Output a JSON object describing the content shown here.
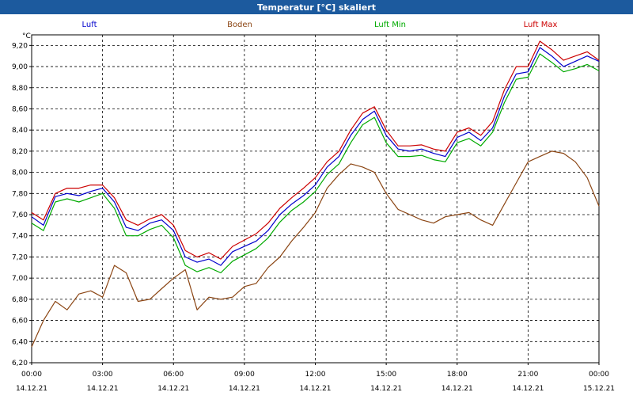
{
  "window": {
    "title": "Temperatur [°C] skaliert"
  },
  "chart_data": {
    "type": "line",
    "title": "Temperatur [°C] skaliert",
    "ylabel": "°C",
    "xlabel": "",
    "grid": true,
    "ylim": [
      6.2,
      9.3
    ],
    "y_ticks": [
      6.2,
      6.4,
      6.6,
      6.8,
      7.0,
      7.2,
      7.4,
      7.6,
      7.8,
      8.0,
      8.2,
      8.4,
      8.6,
      8.8,
      9.0,
      9.2
    ],
    "y_tick_labels": [
      "6,20",
      "6,40",
      "6,60",
      "6,80",
      "7,00",
      "7,20",
      "7,40",
      "7,60",
      "7,80",
      "8,00",
      "8,20",
      "8,40",
      "8,60",
      "8,80",
      "9,00",
      "9,20"
    ],
    "xlim": [
      0,
      24
    ],
    "x_ticks": [
      {
        "hour": 0,
        "time": "00:00",
        "date": "14.12.21"
      },
      {
        "hour": 3,
        "time": "03:00",
        "date": "14.12.21"
      },
      {
        "hour": 6,
        "time": "06:00",
        "date": "14.12.21"
      },
      {
        "hour": 9,
        "time": "09:00",
        "date": "14.12.21"
      },
      {
        "hour": 12,
        "time": "12:00",
        "date": "14.12.21"
      },
      {
        "hour": 15,
        "time": "15:00",
        "date": "14.12.21"
      },
      {
        "hour": 18,
        "time": "18:00",
        "date": "14.12.21"
      },
      {
        "hour": 21,
        "time": "21:00",
        "date": "14.12.21"
      },
      {
        "hour": 24,
        "time": "00:00",
        "date": "15.12.21"
      }
    ],
    "x": [
      0,
      0.5,
      1,
      1.5,
      2,
      2.5,
      3,
      3.5,
      4,
      4.5,
      5,
      5.5,
      6,
      6.5,
      7,
      7.5,
      8,
      8.5,
      9,
      9.5,
      10,
      10.5,
      11,
      11.5,
      12,
      12.5,
      13,
      13.5,
      14,
      14.5,
      15,
      15.5,
      16,
      16.5,
      17,
      17.5,
      18,
      18.5,
      19,
      19.5,
      20,
      20.5,
      21,
      21.5,
      22,
      22.5,
      23,
      23.5,
      24
    ],
    "series": [
      {
        "name": "Luft",
        "color": "#0000cc",
        "values": [
          7.58,
          7.5,
          7.77,
          7.8,
          7.78,
          7.82,
          7.85,
          7.72,
          7.48,
          7.45,
          7.52,
          7.55,
          7.45,
          7.2,
          7.15,
          7.18,
          7.12,
          7.25,
          7.3,
          7.35,
          7.45,
          7.6,
          7.7,
          7.78,
          7.88,
          8.05,
          8.15,
          8.35,
          8.5,
          8.58,
          8.35,
          8.22,
          8.2,
          8.22,
          8.18,
          8.15,
          8.33,
          8.38,
          8.3,
          8.42,
          8.72,
          8.93,
          8.95,
          9.18,
          9.1,
          9.0,
          9.05,
          9.1,
          9.05
        ]
      },
      {
        "name": "Boden",
        "color": "#8b4513",
        "values": [
          6.35,
          6.6,
          6.78,
          6.7,
          6.85,
          6.88,
          6.82,
          7.12,
          7.05,
          6.78,
          6.8,
          6.9,
          7.0,
          7.08,
          6.7,
          6.82,
          6.8,
          6.82,
          6.92,
          6.95,
          7.1,
          7.2,
          7.35,
          7.48,
          7.62,
          7.85,
          7.98,
          8.08,
          8.05,
          8.0,
          7.8,
          7.65,
          7.6,
          7.55,
          7.52,
          7.58,
          7.6,
          7.62,
          7.55,
          7.5,
          7.7,
          7.9,
          8.1,
          8.15,
          8.2,
          8.18,
          8.1,
          7.95,
          7.68
        ]
      },
      {
        "name": "Luft Min",
        "color": "#00aa00",
        "values": [
          7.52,
          7.45,
          7.72,
          7.75,
          7.72,
          7.76,
          7.8,
          7.66,
          7.4,
          7.4,
          7.46,
          7.5,
          7.38,
          7.12,
          7.06,
          7.1,
          7.05,
          7.16,
          7.22,
          7.28,
          7.38,
          7.53,
          7.64,
          7.72,
          7.82,
          7.98,
          8.08,
          8.28,
          8.45,
          8.52,
          8.28,
          8.15,
          8.15,
          8.16,
          8.12,
          8.1,
          8.28,
          8.32,
          8.25,
          8.38,
          8.66,
          8.88,
          8.9,
          9.12,
          9.04,
          8.95,
          8.98,
          9.02,
          8.96
        ]
      },
      {
        "name": "Luft Max",
        "color": "#cc0000",
        "values": [
          7.62,
          7.55,
          7.8,
          7.85,
          7.85,
          7.88,
          7.88,
          7.76,
          7.55,
          7.5,
          7.56,
          7.6,
          7.5,
          7.26,
          7.2,
          7.24,
          7.18,
          7.3,
          7.36,
          7.42,
          7.52,
          7.66,
          7.76,
          7.85,
          7.95,
          8.1,
          8.2,
          8.4,
          8.56,
          8.62,
          8.4,
          8.25,
          8.25,
          8.26,
          8.22,
          8.2,
          8.38,
          8.42,
          8.35,
          8.48,
          8.78,
          9.0,
          9.0,
          9.24,
          9.16,
          9.06,
          9.1,
          9.14,
          9.06
        ]
      }
    ],
    "legend": [
      "Luft",
      "Boden",
      "Luft Min",
      "Luft Max"
    ]
  }
}
